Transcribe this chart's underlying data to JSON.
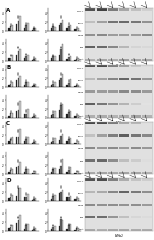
{
  "sections": [
    "A",
    "B",
    "C",
    "D"
  ],
  "background": "#ffffff",
  "bar_color_dark": "#1a1a1a",
  "bar_color_mid": "#666666",
  "bar_color_light": "#cccccc",
  "n_rows": 4,
  "n_bar_groups": 4
}
